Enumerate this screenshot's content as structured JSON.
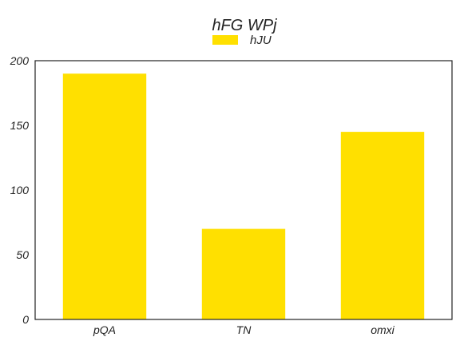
{
  "chart_data": {
    "type": "bar",
    "title": "hFG  WPj",
    "categories": [
      "pQA",
      "TN",
      "omxi"
    ],
    "series": [
      {
        "name": "hJU",
        "values": [
          190,
          70,
          145
        ],
        "color": "#FFE000"
      }
    ],
    "ylim": [
      0,
      200
    ],
    "yticks": [
      0,
      50,
      100,
      150,
      200
    ],
    "xlabel": "",
    "ylabel": "",
    "grid": false,
    "legend_position": "top-center"
  }
}
